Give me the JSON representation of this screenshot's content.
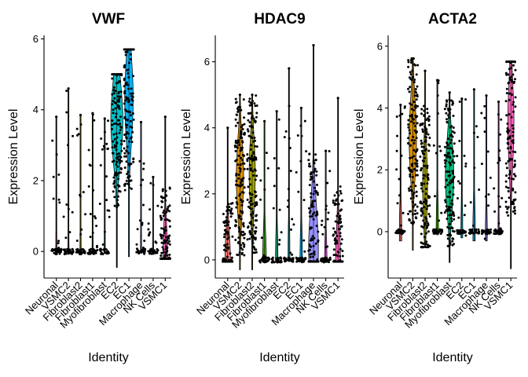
{
  "chart_data": [
    {
      "type": "violin",
      "title": "VWF",
      "xlabel": "Identity",
      "ylabel": "Expression Level",
      "ylim": [
        -0.75,
        6.1
      ],
      "yticks": [
        0,
        2,
        4,
        6
      ],
      "categories": [
        "Neuronal",
        "VSMC2",
        "Fibroblast2",
        "Fibroblast1",
        "Myofibroblast",
        "EC2",
        "EC1",
        "Macrophage",
        "NK Cells",
        "VSMC1"
      ],
      "colors": [
        "#F8766D",
        "#D89000",
        "#A3A500",
        "#39B600",
        "#00BF7D",
        "#00BFC4",
        "#00B0F6",
        "#9590FF",
        "#E76BF3",
        "#FF62BC"
      ],
      "violins": [
        {
          "category": "Neuronal",
          "min": -0.05,
          "max": 3.8,
          "median": 0.0,
          "width": 0.1
        },
        {
          "category": "VSMC2",
          "min": -0.05,
          "max": 4.6,
          "median": 0.0,
          "width": 0.1
        },
        {
          "category": "Fibroblast2",
          "min": -0.1,
          "max": 3.85,
          "median": 0.0,
          "width": 0.1
        },
        {
          "category": "Fibroblast1",
          "min": -0.05,
          "max": 3.9,
          "median": 0.0,
          "width": 0.1
        },
        {
          "category": "Myofibroblast",
          "min": -0.05,
          "max": 3.75,
          "median": 0.0,
          "width": 0.1
        },
        {
          "category": "EC2",
          "min": -0.45,
          "max": 5.0,
          "median": 3.7,
          "width": 1.0
        },
        {
          "category": "EC1",
          "min": -0.15,
          "max": 5.7,
          "median": 4.3,
          "width": 0.7
        },
        {
          "category": "Macrophage",
          "min": -0.05,
          "max": 3.65,
          "median": 0.0,
          "width": 0.1
        },
        {
          "category": "NK Cells",
          "min": -0.05,
          "max": 2.1,
          "median": 0.0,
          "width": 0.1
        },
        {
          "category": "VSMC1",
          "min": -0.2,
          "max": 3.8,
          "median": 0.0,
          "width": 0.35
        }
      ]
    },
    {
      "type": "violin",
      "title": "HDAC9",
      "xlabel": "Identity",
      "ylabel": "Expression Level",
      "ylim": [
        -0.55,
        6.8
      ],
      "yticks": [
        0,
        2,
        4,
        6
      ],
      "categories": [
        "Neuronal",
        "VSMC2",
        "Fibroblast2",
        "Fibroblast1",
        "Myofibroblast",
        "EC2",
        "EC1",
        "Macrophage",
        "NK Cells",
        "VSMC1"
      ],
      "colors": [
        "#F8766D",
        "#D89000",
        "#A3A500",
        "#39B600",
        "#00BF7D",
        "#00BFC4",
        "#00B0F6",
        "#9590FF",
        "#E76BF3",
        "#FF62BC"
      ],
      "violins": [
        {
          "category": "Neuronal",
          "min": -0.05,
          "max": 4.0,
          "median": 0.0,
          "width": 0.45
        },
        {
          "category": "VSMC2",
          "min": -0.3,
          "max": 5.0,
          "median": 2.5,
          "width": 0.6
        },
        {
          "category": "Fibroblast2",
          "min": -0.3,
          "max": 5.0,
          "median": 2.6,
          "width": 0.5
        },
        {
          "category": "Fibroblast1",
          "min": -0.05,
          "max": 4.2,
          "median": 0.0,
          "width": 0.3
        },
        {
          "category": "Myofibroblast",
          "min": -0.05,
          "max": 4.5,
          "median": 0.0,
          "width": 0.2
        },
        {
          "category": "EC2",
          "min": -0.05,
          "max": 5.8,
          "median": 0.0,
          "width": 0.15
        },
        {
          "category": "EC1",
          "min": -0.05,
          "max": 4.6,
          "median": 0.0,
          "width": 0.2
        },
        {
          "category": "Macrophage",
          "min": -0.05,
          "max": 6.5,
          "median": 0.3,
          "width": 0.8
        },
        {
          "category": "NK Cells",
          "min": -0.05,
          "max": 3.3,
          "median": 0.0,
          "width": 0.2
        },
        {
          "category": "VSMC1",
          "min": -0.05,
          "max": 4.9,
          "median": 0.0,
          "width": 0.4
        }
      ]
    },
    {
      "type": "violin",
      "title": "ACTA2",
      "xlabel": "Identity",
      "ylabel": "Expression Level",
      "ylim": [
        -1.5,
        6.35
      ],
      "yticks": [
        0,
        2,
        4,
        6
      ],
      "categories": [
        "Neuronal",
        "VSMC2",
        "Fibroblast2",
        "Fibroblast1",
        "Myofibroblast",
        "EC2",
        "EC1",
        "Macrophage",
        "NK Cells",
        "VSMC1"
      ],
      "colors": [
        "#F8766D",
        "#D89000",
        "#A3A500",
        "#39B600",
        "#00BF7D",
        "#00BFC4",
        "#00B0F6",
        "#9590FF",
        "#E76BF3",
        "#FF62BC"
      ],
      "violins": [
        {
          "category": "Neuronal",
          "min": -0.3,
          "max": 4.1,
          "median": 0.0,
          "width": 0.2
        },
        {
          "category": "VSMC2",
          "min": -0.6,
          "max": 5.6,
          "median": 3.0,
          "width": 0.6
        },
        {
          "category": "Fibroblast2",
          "min": -0.5,
          "max": 5.2,
          "median": 1.5,
          "width": 0.4
        },
        {
          "category": "Fibroblast1",
          "min": -0.1,
          "max": 4.9,
          "median": 0.0,
          "width": 0.2
        },
        {
          "category": "Myofibroblast",
          "min": -1.0,
          "max": 4.5,
          "median": 1.8,
          "width": 0.7
        },
        {
          "category": "EC2",
          "min": -0.2,
          "max": 4.3,
          "median": 0.0,
          "width": 0.15
        },
        {
          "category": "EC1",
          "min": -0.3,
          "max": 4.6,
          "median": 0.0,
          "width": 0.2
        },
        {
          "category": "Macrophage",
          "min": -0.3,
          "max": 4.4,
          "median": 0.0,
          "width": 0.15
        },
        {
          "category": "NK Cells",
          "min": -0.1,
          "max": 4.2,
          "median": 0.0,
          "width": 0.1
        },
        {
          "category": "VSMC1",
          "min": -1.2,
          "max": 5.5,
          "median": 3.5,
          "width": 0.5
        }
      ]
    }
  ]
}
